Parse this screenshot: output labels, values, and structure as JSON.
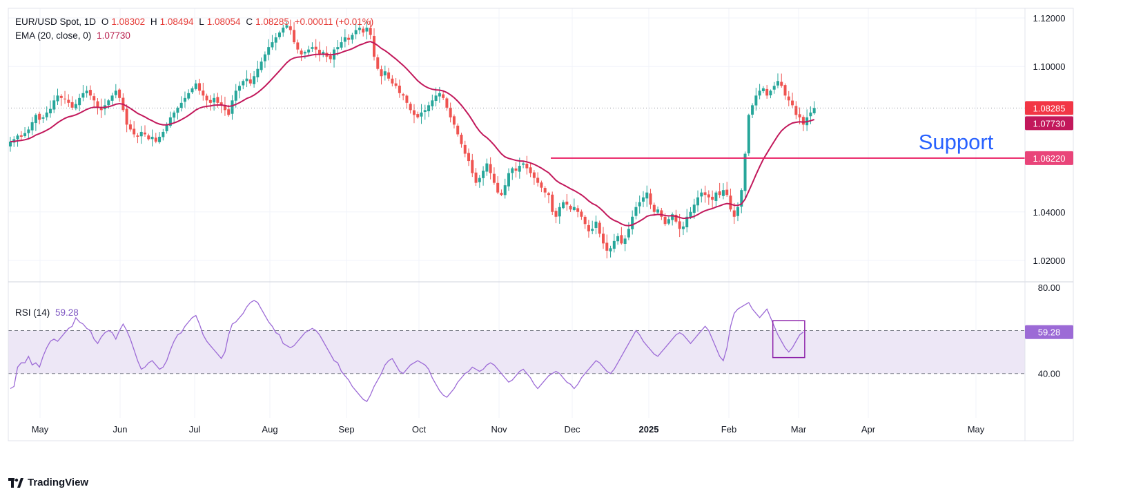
{
  "header": {
    "symbol": "EUR/USD Spot, 1D",
    "open_label": "O",
    "open": "1.08302",
    "high_label": "H",
    "high": "1.08494",
    "low_label": "L",
    "low": "1.08054",
    "close_label": "C",
    "close": "1.08285",
    "change": "+0.00011 (+0.01%)",
    "ema_label": "EMA (20, close, 0)",
    "ema_value": "1.07730",
    "rsi_label": "RSI (14)",
    "rsi_value": "59.28"
  },
  "branding": {
    "logo_text": "TradingView"
  },
  "colors": {
    "up": "#26a69a",
    "down": "#ef5350",
    "ema": "#c2185b",
    "support": "#e91e63",
    "rsi": "#9c6ad6",
    "rsi_band": "#ede7f6",
    "annotation": "#2962ff",
    "price_tag": "#f23645",
    "ema_tag": "#c2185b",
    "support_tag": "#e94479",
    "rsi_tag": "#9c6ad6"
  },
  "chart_data": [
    {
      "type": "candlestick",
      "title": "EUR/USD Spot, 1D",
      "x_labels": [
        "May",
        "Jun",
        "Jul",
        "Aug",
        "Sep",
        "Oct",
        "Nov",
        "Dec",
        "2025",
        "Feb",
        "Mar",
        "Apr",
        "May"
      ],
      "y_ticks": [
        "1.12000",
        "1.10000",
        "1.04000",
        "1.02000"
      ],
      "ylim": [
        1.012,
        1.124
      ],
      "price_tags": {
        "last": "1.08285",
        "ema": "1.07730",
        "support": "1.06220"
      },
      "support_level": 1.0622,
      "annotation": "Support",
      "series": [
        {
          "name": "EUR/USD",
          "close": [
            1.069,
            1.07,
            1.0715,
            1.071,
            1.0725,
            1.074,
            1.077,
            1.08,
            1.078,
            1.079,
            1.081,
            1.0825,
            1.086,
            1.088,
            1.087,
            1.0865,
            1.085,
            1.083,
            1.0845,
            1.087,
            1.089,
            1.09,
            1.088,
            1.086,
            1.083,
            1.082,
            1.084,
            1.086,
            1.088,
            1.09,
            1.087,
            1.082,
            1.076,
            1.074,
            1.072,
            1.071,
            1.073,
            1.072,
            1.07,
            1.071,
            1.069,
            1.071,
            1.073,
            1.076,
            1.079,
            1.081,
            1.083,
            1.085,
            1.087,
            1.089,
            1.091,
            1.093,
            1.09,
            1.088,
            1.086,
            1.085,
            1.087,
            1.085,
            1.084,
            1.082,
            1.08,
            1.086,
            1.09,
            1.092,
            1.094,
            1.095,
            1.093,
            1.096,
            1.099,
            1.102,
            1.105,
            1.108,
            1.11,
            1.112,
            1.114,
            1.116,
            1.117,
            1.115,
            1.11,
            1.107,
            1.105,
            1.106,
            1.107,
            1.108,
            1.107,
            1.105,
            1.106,
            1.104,
            1.103,
            1.107,
            1.108,
            1.11,
            1.112,
            1.111,
            1.113,
            1.115,
            1.116,
            1.114,
            1.116,
            1.113,
            1.104,
            1.099,
            1.096,
            1.098,
            1.095,
            1.093,
            1.092,
            1.089,
            1.088,
            1.085,
            1.082,
            1.08,
            1.079,
            1.081,
            1.082,
            1.084,
            1.086,
            1.088,
            1.089,
            1.087,
            1.083,
            1.079,
            1.076,
            1.072,
            1.068,
            1.064,
            1.061,
            1.056,
            1.052,
            1.054,
            1.057,
            1.06,
            1.056,
            1.052,
            1.048,
            1.047,
            1.051,
            1.056,
            1.058,
            1.057,
            1.059,
            1.06,
            1.058,
            1.056,
            1.054,
            1.052,
            1.05,
            1.048,
            1.047,
            1.04,
            1.038,
            1.042,
            1.044,
            1.043,
            1.041,
            1.042,
            1.04,
            1.038,
            1.035,
            1.032,
            1.033,
            1.036,
            1.031,
            1.027,
            1.024,
            1.025,
            1.028,
            1.03,
            1.027,
            1.029,
            1.033,
            1.038,
            1.042,
            1.044,
            1.046,
            1.048,
            1.043,
            1.04,
            1.041,
            1.038,
            1.035,
            1.037,
            1.039,
            1.036,
            1.033,
            1.034,
            1.038,
            1.04,
            1.043,
            1.046,
            1.048,
            1.047,
            1.046,
            1.045,
            1.048,
            1.047,
            1.049,
            1.047,
            1.041,
            1.038,
            1.042,
            1.049,
            1.064,
            1.08,
            1.084,
            1.088,
            1.09,
            1.091,
            1.088,
            1.09,
            1.092,
            1.094,
            1.092,
            1.088,
            1.086,
            1.084,
            1.08,
            1.079,
            1.076,
            1.079,
            1.081,
            1.0829
          ],
          "note": "approximate daily closes read from the chart"
        },
        {
          "name": "EMA (20, close, 0)"
        }
      ]
    },
    {
      "type": "line",
      "title": "RSI (14)",
      "y_ticks": [
        "80.00",
        "40.00"
      ],
      "ylim": [
        20,
        82
      ],
      "band": [
        40,
        60
      ],
      "last_value": "59.28",
      "series": [
        {
          "name": "RSI (14)",
          "values": [
            33,
            34,
            43,
            45,
            45,
            48,
            44,
            45,
            43,
            48,
            52,
            55,
            56,
            55,
            57,
            59,
            61,
            62,
            66,
            64,
            63,
            61,
            60,
            56,
            54,
            57,
            59,
            60,
            59,
            56,
            60,
            63,
            60,
            56,
            51,
            46,
            42,
            43,
            45,
            46,
            44,
            42,
            43,
            46,
            51,
            55,
            58,
            59,
            62,
            64,
            66,
            67,
            63,
            58,
            55,
            53,
            51,
            49,
            47,
            50,
            58,
            63,
            64,
            66,
            68,
            71,
            73,
            74,
            73,
            70,
            67,
            64,
            62,
            59,
            58,
            54,
            53,
            52,
            53,
            55,
            57,
            59,
            60,
            61,
            60,
            58,
            55,
            52,
            49,
            46,
            45,
            41,
            39,
            37,
            34,
            32,
            30,
            28,
            27,
            30,
            34,
            37,
            40,
            44,
            46,
            47,
            44,
            41,
            40,
            42,
            44,
            45,
            46,
            45,
            44,
            42,
            38,
            35,
            32,
            30,
            29,
            31,
            33,
            36,
            38,
            40,
            41,
            43,
            42,
            41,
            42,
            44,
            45,
            44,
            42,
            40,
            38,
            36,
            37,
            39,
            41,
            42,
            40,
            38,
            35,
            33,
            35,
            37,
            39,
            40,
            41,
            40,
            38,
            36,
            35,
            33,
            35,
            38,
            40,
            42,
            44,
            46,
            45,
            43,
            41,
            40,
            42,
            45,
            48,
            51,
            54,
            57,
            60,
            58,
            55,
            53,
            51,
            49,
            48,
            50,
            52,
            54,
            56,
            58,
            59,
            58,
            56,
            54,
            56,
            58,
            60,
            62,
            60,
            56,
            52,
            48,
            46,
            52,
            62,
            68,
            70,
            71,
            72,
            73,
            70,
            68,
            66,
            68,
            70,
            66,
            62,
            58,
            55,
            52,
            50,
            52,
            55,
            58,
            59.28
          ]
        }
      ],
      "highlight_box": {
        "from_index": 210,
        "to_index": 232
      }
    }
  ]
}
